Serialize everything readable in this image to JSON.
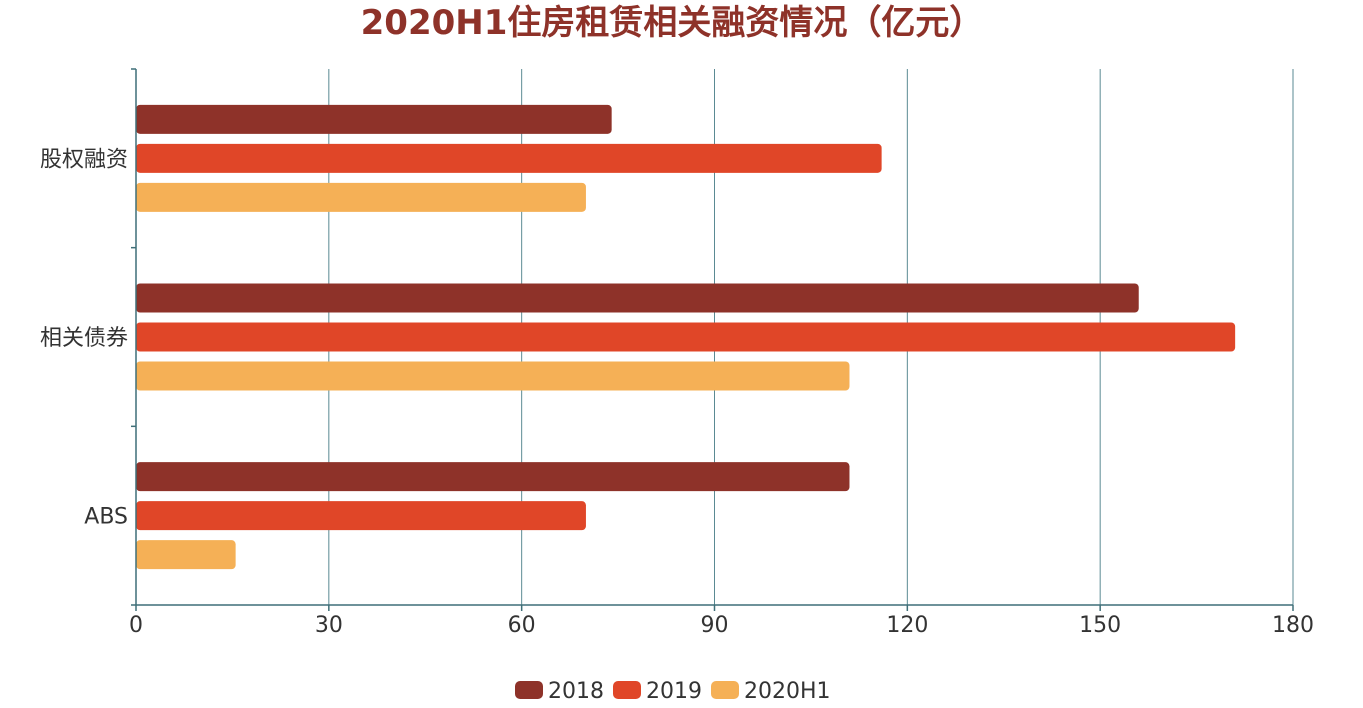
{
  "chart_data": {
    "type": "bar",
    "orientation": "horizontal",
    "title": "2020H1住房租赁相关融资情况（亿元）",
    "categories": [
      "股权融资",
      "相关债券",
      "ABS"
    ],
    "series": [
      {
        "name": "2018",
        "color": "#8e3229",
        "values": [
          74,
          156,
          111
        ]
      },
      {
        "name": "2019",
        "color": "#e04628",
        "values": [
          116,
          171,
          70
        ]
      },
      {
        "name": "2020H1",
        "color": "#f5b056",
        "values": [
          70,
          111,
          15.5
        ]
      }
    ],
    "xlim": [
      0,
      180
    ],
    "xticks": [
      "0",
      "30",
      "60",
      "90",
      "120",
      "150",
      "180"
    ],
    "grid": true,
    "legend_position": "bottom-center"
  }
}
